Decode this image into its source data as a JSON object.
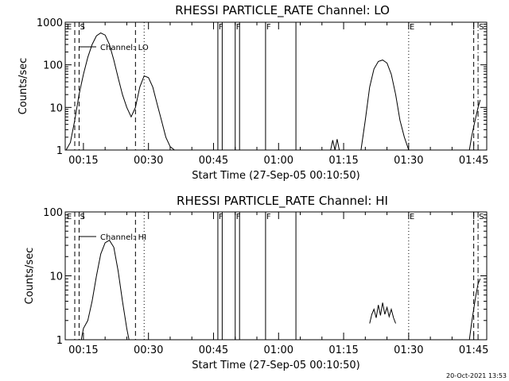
{
  "footer": {
    "timestamp": "20-Oct-2021 13:53"
  },
  "chart_data": [
    {
      "type": "line",
      "title": "RHESSI PARTICLE_RATE Channel: LO",
      "xlabel": "Start Time (27-Sep-05 00:10:50)",
      "ylabel": "Counts/sec",
      "yscale": "log",
      "ylim": [
        1,
        1000
      ],
      "xlim_minutes": [
        10.8,
        108
      ],
      "x_ticks": [
        "00:15",
        "00:30",
        "00:45",
        "01:00",
        "01:15",
        "01:30",
        "01:45"
      ],
      "y_ticks": [
        "1",
        "10",
        "100",
        "1000"
      ],
      "legend": "Channel: LO",
      "series": [
        {
          "name": "Channel: LO",
          "x": [
            "00:11:00",
            "00:12:00",
            "00:13:00",
            "00:14:00",
            "00:15:00",
            "00:16:00",
            "00:17:00",
            "00:18:00",
            "00:19:00",
            "00:20:00",
            "00:21:00",
            "00:22:00",
            "00:23:00",
            "00:24:00",
            "00:25:00",
            "00:26:00",
            "00:27:00",
            "00:28:00",
            "00:29:00",
            "00:30:00",
            "00:31:00",
            "00:32:00",
            "00:33:00",
            "00:34:00",
            "00:35:00",
            "00:36:00"
          ],
          "y": [
            1,
            1.5,
            5,
            20,
            60,
            150,
            300,
            480,
            560,
            500,
            300,
            130,
            50,
            20,
            10,
            6,
            10,
            30,
            55,
            50,
            30,
            12,
            5,
            2,
            1.2,
            1
          ]
        },
        {
          "name": "",
          "x": [
            "01:12:00",
            "01:12:30",
            "01:13:00",
            "01:13:30",
            "01:14:00"
          ],
          "y": [
            1,
            1.7,
            1,
            1.8,
            1
          ]
        },
        {
          "name": "",
          "x": [
            "01:19:00",
            "01:20:00",
            "01:21:00",
            "01:22:00",
            "01:23:00",
            "01:24:00",
            "01:25:00",
            "01:26:00",
            "01:27:00",
            "01:28:00",
            "01:29:00",
            "01:30:00"
          ],
          "y": [
            1,
            5,
            30,
            80,
            120,
            130,
            110,
            60,
            20,
            5,
            2,
            1
          ]
        },
        {
          "name": "",
          "x": [
            "01:44:00",
            "01:44:30",
            "01:45:00",
            "01:45:30",
            "01:46:00",
            "01:46:30"
          ],
          "y": [
            1,
            2,
            3.5,
            6,
            10,
            15
          ]
        }
      ],
      "event_lines": [
        {
          "time": "00:13:00",
          "style": "dashed",
          "label": "E"
        },
        {
          "time": "00:14:00",
          "style": "dashed",
          "label": "S"
        },
        {
          "time": "00:27:00",
          "style": "dashed",
          "label": ""
        },
        {
          "time": "00:29:00",
          "style": "dotted",
          "label": ""
        },
        {
          "time": "00:46:00",
          "style": "solid",
          "label": "F"
        },
        {
          "time": "00:47:00",
          "style": "solid",
          "label": ""
        },
        {
          "time": "00:50:00",
          "style": "solid",
          "label": "F"
        },
        {
          "time": "00:51:00",
          "style": "solid",
          "label": ""
        },
        {
          "time": "00:57:00",
          "style": "solid",
          "label": "F"
        },
        {
          "time": "01:04:00",
          "style": "solid",
          "label": ""
        },
        {
          "time": "01:30:00",
          "style": "dotted",
          "label": "E"
        },
        {
          "time": "01:45:00",
          "style": "dashed",
          "label": ""
        },
        {
          "time": "01:46:00",
          "style": "dashdot",
          "label": "S"
        }
      ]
    },
    {
      "type": "line",
      "title": "RHESSI PARTICLE_RATE Channel: HI",
      "xlabel": "Start Time (27-Sep-05 00:10:50)",
      "ylabel": "Counts/sec",
      "yscale": "log",
      "ylim": [
        1,
        100
      ],
      "xlim_minutes": [
        10.8,
        108
      ],
      "x_ticks": [
        "00:15",
        "00:30",
        "00:45",
        "01:00",
        "01:15",
        "01:30",
        "01:45"
      ],
      "y_ticks": [
        "1",
        "10",
        "100"
      ],
      "legend": "Channel: HI",
      "series": [
        {
          "name": "Channel: HI",
          "x": [
            "00:14:30",
            "00:15:00",
            "00:16:00",
            "00:17:00",
            "00:18:00",
            "00:19:00",
            "00:20:00",
            "00:21:00",
            "00:22:00",
            "00:23:00",
            "00:24:00",
            "00:25:00",
            "00:25:30"
          ],
          "y": [
            1,
            1.5,
            2,
            4,
            10,
            22,
            33,
            36,
            28,
            12,
            4,
            1.5,
            1
          ]
        },
        {
          "name": "",
          "x": [
            "01:21:00",
            "01:21:30",
            "01:22:00",
            "01:22:30",
            "01:23:00",
            "01:23:30",
            "01:24:00",
            "01:24:30",
            "01:25:00",
            "01:25:30",
            "01:26:00",
            "01:26:30",
            "01:27:00"
          ],
          "y": [
            1.8,
            2.5,
            3,
            2.2,
            3.5,
            2.4,
            3.8,
            2.5,
            3.2,
            2.3,
            3,
            2.2,
            1.8
          ]
        },
        {
          "name": "",
          "x": [
            "01:44:00",
            "01:44:30",
            "01:45:00",
            "01:45:30",
            "01:46:00",
            "01:46:30"
          ],
          "y": [
            1,
            1.8,
            3,
            5,
            7.5,
            9
          ]
        }
      ],
      "event_lines": [
        {
          "time": "00:13:00",
          "style": "dashed",
          "label": "E"
        },
        {
          "time": "00:14:00",
          "style": "dashed",
          "label": "S"
        },
        {
          "time": "00:27:00",
          "style": "dashed",
          "label": ""
        },
        {
          "time": "00:29:00",
          "style": "dotted",
          "label": ""
        },
        {
          "time": "00:46:00",
          "style": "solid",
          "label": "F"
        },
        {
          "time": "00:47:00",
          "style": "solid",
          "label": ""
        },
        {
          "time": "00:50:00",
          "style": "solid",
          "label": "F"
        },
        {
          "time": "00:51:00",
          "style": "solid",
          "label": ""
        },
        {
          "time": "00:57:00",
          "style": "solid",
          "label": "F"
        },
        {
          "time": "01:04:00",
          "style": "solid",
          "label": ""
        },
        {
          "time": "01:30:00",
          "style": "dotted",
          "label": "E"
        },
        {
          "time": "01:45:00",
          "style": "dashed",
          "label": ""
        },
        {
          "time": "01:46:00",
          "style": "dashdot",
          "label": "S"
        }
      ]
    }
  ]
}
